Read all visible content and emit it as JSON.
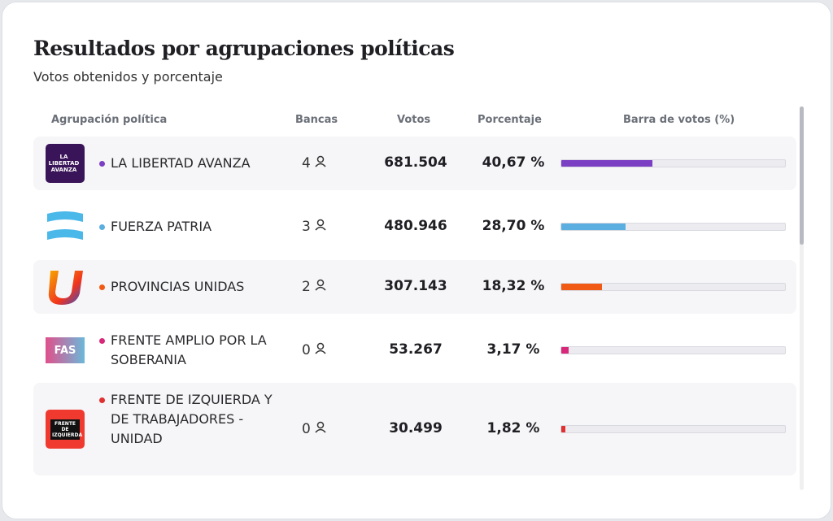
{
  "title": "Resultados por agrupaciones políticas",
  "subtitle": "Votos obtenidos y porcentaje",
  "headers": {
    "party": "Agrupación política",
    "seats": "Bancas",
    "votes": "Votos",
    "percent": "Porcentaje",
    "bar": "Barra de votos (%)"
  },
  "rows": [
    {
      "name": "LA LIBERTAD AVANZA",
      "seats": "4",
      "votes": "681.504",
      "percent": "40,67 %",
      "pct_value": 40.67,
      "color": "#7b3fc4",
      "logo_text": "LA LIBERTAD AVANZA"
    },
    {
      "name": "FUERZA PATRIA",
      "seats": "3",
      "votes": "480.946",
      "percent": "28,70 %",
      "pct_value": 28.7,
      "color": "#5aaee0"
    },
    {
      "name": "PROVINCIAS UNIDAS",
      "seats": "2",
      "votes": "307.143",
      "percent": "18,32 %",
      "pct_value": 18.32,
      "color": "#f05a14"
    },
    {
      "name": "FRENTE AMPLIO POR LA SOBERANIA",
      "seats": "0",
      "votes": "53.267",
      "percent": "3,17 %",
      "pct_value": 3.17,
      "color": "#d8287a",
      "logo_text": "FAS"
    },
    {
      "name": "FRENTE DE IZQUIERDA Y DE TRABAJADORES - UNIDAD",
      "seats": "0",
      "votes": "30.499",
      "percent": "1,82 %",
      "pct_value": 1.82,
      "color": "#e03030",
      "logo_text": "FRENTE DE IZQUIERDA"
    }
  ]
}
